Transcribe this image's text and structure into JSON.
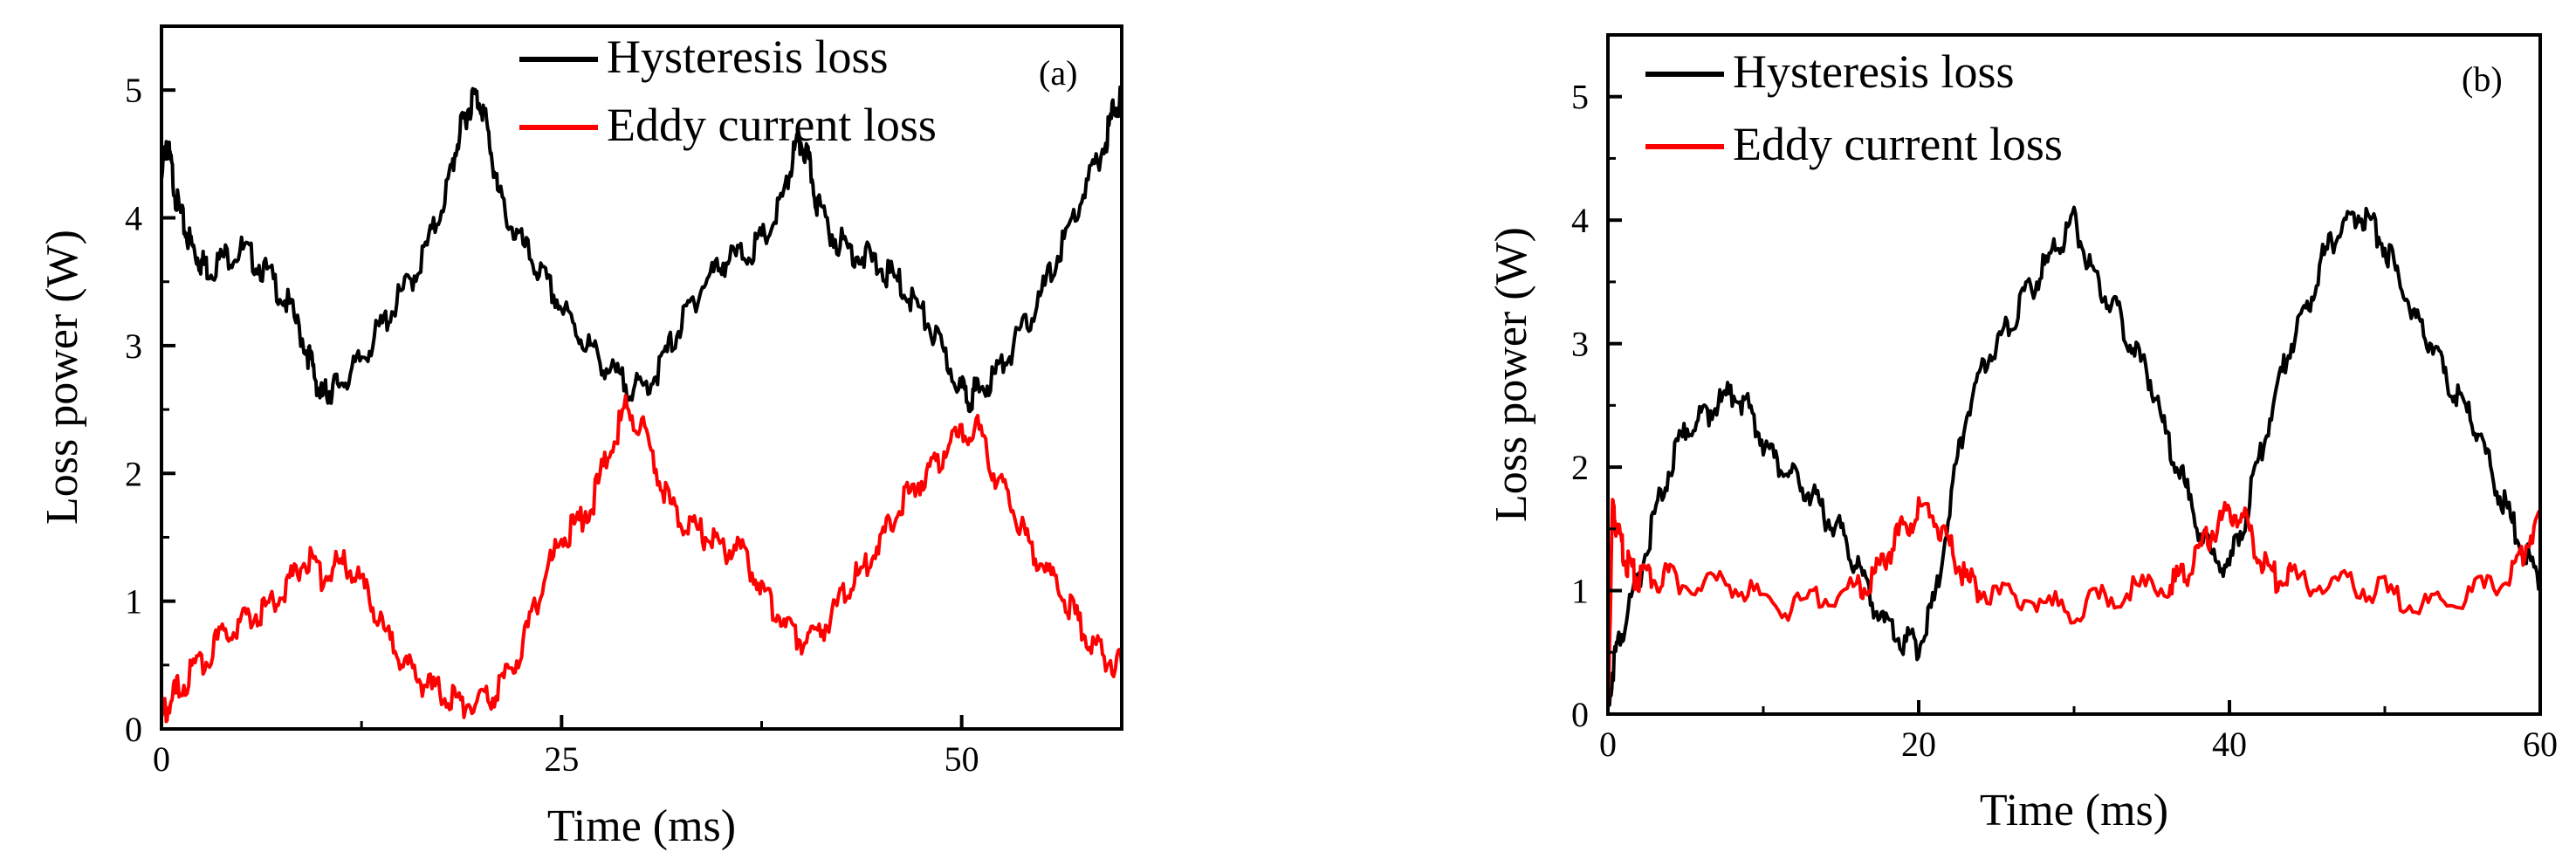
{
  "figure": {
    "colors": {
      "hysteresis": "#000000",
      "eddy": "#ff0000",
      "axis": "#000000",
      "background": "#ffffff"
    }
  },
  "chart_data": [
    {
      "type": "line",
      "panel_label": "(a)",
      "xlabel": "Time (ms)",
      "ylabel": "Loss power (W)",
      "xlim": [
        0,
        60
      ],
      "ylim": [
        0,
        5.5
      ],
      "xticks": [
        0,
        25,
        50
      ],
      "xtick_labels": [
        "0",
        "25",
        "50"
      ],
      "yticks": [
        0,
        1,
        2,
        3,
        4,
        5
      ],
      "ytick_labels": [
        "0",
        "1",
        "2",
        "3",
        "4",
        "5"
      ],
      "legend_position": "top-center",
      "series": [
        {
          "name": "Hysteresis loss",
          "color": "#000000",
          "x": [
            0,
            0.3,
            0.6,
            1,
            1.5,
            2,
            2.5,
            3,
            4,
            5,
            6,
            7,
            8,
            9,
            9.5,
            10,
            10.5,
            11,
            12,
            13,
            14,
            15,
            16,
            17,
            18,
            18.5,
            19,
            19.5,
            20,
            20.5,
            21,
            22,
            23,
            24,
            25,
            26,
            27,
            28,
            29,
            30,
            31,
            32,
            33,
            34,
            35,
            36,
            37,
            38,
            39,
            39.5,
            40,
            40.5,
            41,
            42,
            43,
            44,
            45,
            46,
            47,
            48,
            49,
            50,
            50.5,
            51,
            52,
            53,
            54,
            55,
            56,
            57,
            58,
            59,
            59.5,
            60
          ],
          "values": [
            4.3,
            4.6,
            4.4,
            4.1,
            3.9,
            3.75,
            3.65,
            3.6,
            3.7,
            3.75,
            3.65,
            3.5,
            3.3,
            3.0,
            2.8,
            2.6,
            2.65,
            2.7,
            2.8,
            3.0,
            3.2,
            3.4,
            3.6,
            3.9,
            4.3,
            4.6,
            4.8,
            4.95,
            4.9,
            4.6,
            4.2,
            3.9,
            3.7,
            3.5,
            3.3,
            3.1,
            2.95,
            2.8,
            2.7,
            2.65,
            2.8,
            3.05,
            3.3,
            3.5,
            3.65,
            3.7,
            3.75,
            3.9,
            4.2,
            4.5,
            4.6,
            4.4,
            4.1,
            3.85,
            3.75,
            3.7,
            3.6,
            3.5,
            3.35,
            3.15,
            2.9,
            2.65,
            2.6,
            2.65,
            2.75,
            2.95,
            3.15,
            3.4,
            3.7,
            4.0,
            4.3,
            4.6,
            4.85,
            4.95
          ]
        },
        {
          "name": "Eddy current loss",
          "color": "#ff0000",
          "x": [
            0,
            0.5,
            1,
            2,
            3,
            4,
            5,
            6,
            7,
            8,
            9,
            10,
            11,
            12,
            13,
            14,
            15,
            16,
            17,
            18,
            19,
            20,
            21,
            22,
            23,
            24,
            25,
            26,
            27,
            28,
            29,
            30,
            31,
            32,
            33,
            34,
            35,
            36,
            37,
            38,
            39,
            40,
            41,
            42,
            43,
            44,
            45,
            46,
            47,
            48,
            49,
            50,
            51,
            52,
            53,
            54,
            55,
            56,
            57,
            58,
            59,
            60
          ],
          "values": [
            0.1,
            0.2,
            0.3,
            0.45,
            0.6,
            0.75,
            0.85,
            0.9,
            1.0,
            1.15,
            1.35,
            1.2,
            1.3,
            1.25,
            1.0,
            0.75,
            0.55,
            0.4,
            0.3,
            0.25,
            0.2,
            0.2,
            0.3,
            0.5,
            0.8,
            1.2,
            1.5,
            1.6,
            1.8,
            2.2,
            2.5,
            2.4,
            2.0,
            1.7,
            1.6,
            1.5,
            1.4,
            1.45,
            1.2,
            1.0,
            0.8,
            0.7,
            0.75,
            0.9,
            1.1,
            1.3,
            1.5,
            1.7,
            1.9,
            2.0,
            2.2,
            2.3,
            2.35,
            2.0,
            1.8,
            1.5,
            1.3,
            1.1,
            0.9,
            0.7,
            0.55,
            0.5
          ]
        }
      ]
    },
    {
      "type": "line",
      "panel_label": "(b)",
      "xlabel": "Time (ms)",
      "ylabel": "Loss power (W)",
      "xlim": [
        0,
        60
      ],
      "ylim": [
        0,
        5.5
      ],
      "xticks": [
        0,
        20,
        40,
        60
      ],
      "xtick_labels": [
        "0",
        "20",
        "40",
        "60"
      ],
      "yticks": [
        0,
        1,
        2,
        3,
        4,
        5
      ],
      "ytick_labels": [
        "0",
        "1",
        "2",
        "3",
        "4",
        "5"
      ],
      "legend_position": "top-left",
      "series": [
        {
          "name": "Hysteresis loss",
          "color": "#000000",
          "x": [
            0,
            0.5,
            1,
            2,
            3,
            4,
            5,
            6,
            7,
            8,
            9,
            10,
            11,
            12,
            13,
            14,
            15,
            16,
            17,
            18,
            19,
            20,
            21,
            22,
            23,
            24,
            25,
            26,
            27,
            28,
            29,
            30,
            31,
            32,
            33,
            34,
            35,
            36,
            37,
            38,
            39,
            40,
            41,
            42,
            43,
            44,
            45,
            46,
            47,
            48,
            49,
            50,
            51,
            52,
            53,
            54,
            55,
            56,
            57,
            58,
            59,
            60
          ],
          "values": [
            0.1,
            0.5,
            0.7,
            1.1,
            1.6,
            2.0,
            2.3,
            2.4,
            2.5,
            2.6,
            2.5,
            2.2,
            2.0,
            1.9,
            1.8,
            1.6,
            1.5,
            1.2,
            0.9,
            0.7,
            0.6,
            0.55,
            0.9,
            1.7,
            2.4,
            2.8,
            3.0,
            3.2,
            3.4,
            3.6,
            3.8,
            4.0,
            3.6,
            3.4,
            3.2,
            2.9,
            2.7,
            2.2,
            1.9,
            1.5,
            1.25,
            1.2,
            1.6,
            2.1,
            2.6,
            3.0,
            3.3,
            3.7,
            3.9,
            4.05,
            4.0,
            3.8,
            3.5,
            3.2,
            3.0,
            2.7,
            2.5,
            2.3,
            1.9,
            1.6,
            1.3,
            1.1
          ]
        },
        {
          "name": "Eddy current loss",
          "color": "#ff0000",
          "x": [
            0,
            0.3,
            0.6,
            1,
            1.5,
            2,
            3,
            4,
            6,
            8,
            10,
            12,
            14,
            16,
            17,
            18,
            19,
            20,
            21,
            22,
            23,
            24,
            26,
            28,
            30,
            32,
            34,
            36,
            37,
            38,
            39,
            40,
            41,
            42,
            43,
            44,
            46,
            48,
            50,
            52,
            54,
            56,
            58,
            59,
            60
          ],
          "values": [
            0.05,
            1.7,
            1.5,
            1.3,
            1.15,
            1.1,
            1.1,
            1.1,
            1.05,
            1.05,
            0.95,
            0.85,
            0.95,
            1.0,
            1.1,
            1.3,
            1.5,
            1.65,
            1.6,
            1.35,
            1.1,
            1.0,
            0.95,
            0.9,
            0.85,
            0.95,
            1.0,
            1.05,
            1.1,
            1.3,
            1.5,
            1.65,
            1.55,
            1.25,
            1.1,
            1.1,
            1.05,
            1.05,
            1.0,
            0.85,
            0.9,
            1.0,
            1.1,
            1.35,
            1.65
          ]
        }
      ]
    }
  ]
}
